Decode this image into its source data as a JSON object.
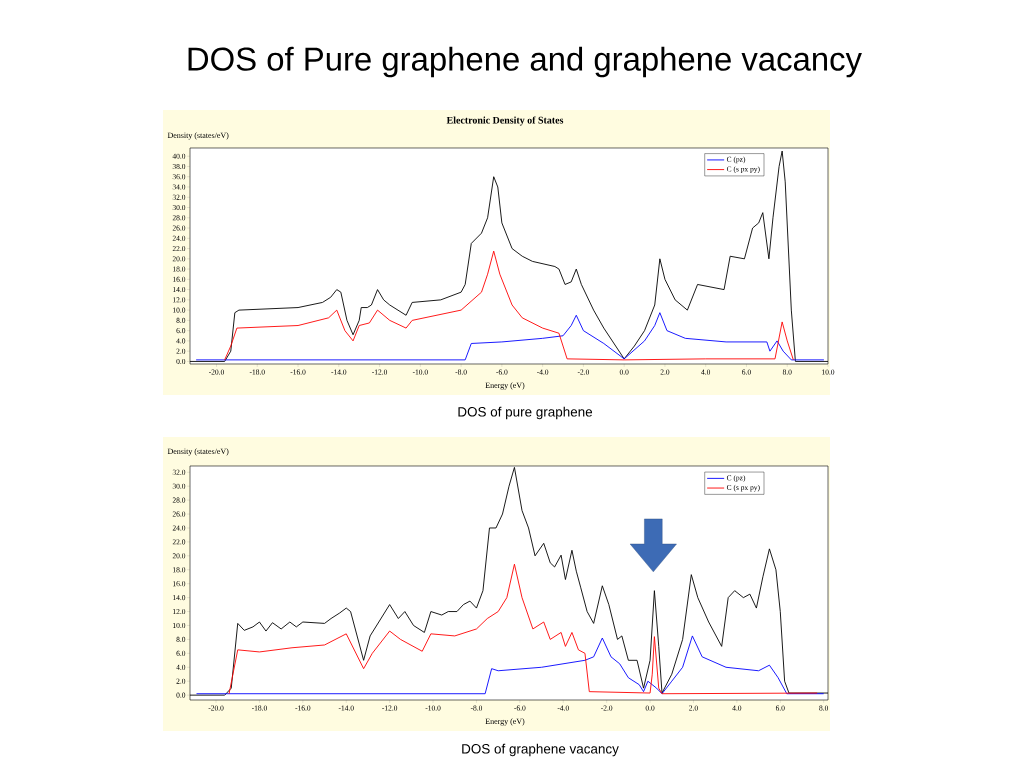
{
  "chart_data": [
    {
      "type": "line",
      "title": "DOS of Pure graphene and graphene vacancy",
      "subtitle": "Electronic Density of States",
      "xlabel": "Energy (eV)",
      "ylabel": "Density (states/eV)",
      "xlim": [
        -21.3,
        10
      ],
      "ylim": [
        -0.5,
        41.6
      ],
      "xticks": [
        {
          "value": -20,
          "label": "-20.0"
        },
        {
          "value": -18,
          "label": "-18.0"
        },
        {
          "value": -16,
          "label": "-16.0"
        },
        {
          "value": -14,
          "label": "-14.0"
        },
        {
          "value": -12,
          "label": "-12.0"
        },
        {
          "value": -10,
          "label": "-10.0"
        },
        {
          "value": -8,
          "label": "-8.0"
        },
        {
          "value": -6,
          "label": "-6.0"
        },
        {
          "value": -4,
          "label": "-4.0"
        },
        {
          "value": -2,
          "label": "-2.0"
        },
        {
          "value": 0,
          "label": "0.0"
        },
        {
          "value": 2,
          "label": "2.0"
        },
        {
          "value": 4,
          "label": "4.0"
        },
        {
          "value": 6,
          "label": "6.0"
        },
        {
          "value": 8,
          "label": "8.0"
        },
        {
          "value": 10,
          "label": "10.0"
        }
      ],
      "yticks": [
        {
          "value": 0,
          "label": "0.0"
        },
        {
          "value": 2,
          "label": "2.0"
        },
        {
          "value": 4,
          "label": "4.0"
        },
        {
          "value": 6,
          "label": "6.0"
        },
        {
          "value": 8,
          "label": "8.0"
        },
        {
          "value": 10,
          "label": "10.0"
        },
        {
          "value": 12,
          "label": "12.0"
        },
        {
          "value": 14,
          "label": "14.0"
        },
        {
          "value": 16,
          "label": "16.0"
        },
        {
          "value": 18,
          "label": "18.0"
        },
        {
          "value": 20,
          "label": "20.0"
        },
        {
          "value": 22,
          "label": "22.0"
        },
        {
          "value": 24,
          "label": "24.0"
        },
        {
          "value": 26,
          "label": "26.0"
        },
        {
          "value": 28,
          "label": "28.0"
        },
        {
          "value": 30,
          "label": "30.0"
        },
        {
          "value": 32,
          "label": "32.0"
        },
        {
          "value": 34,
          "label": "34.0"
        },
        {
          "value": 36,
          "label": "36.0"
        },
        {
          "value": 38,
          "label": "38.0"
        },
        {
          "value": 40,
          "label": "40.0"
        }
      ],
      "legend": "top right",
      "series": [
        {
          "color": "#000000",
          "x": [
            -21.3,
            -19.6,
            -19.3,
            -19.1,
            -18.9,
            -16,
            -14.8,
            -14.4,
            -14.1,
            -13.9,
            -13.6,
            -13.3,
            -13.0,
            -12.9,
            -12.6,
            -12.4,
            -12.1,
            -11.8,
            -11.5,
            -10.7,
            -10.4,
            -9,
            -8.0,
            -7.8,
            -7.5,
            -7.0,
            -6.7,
            -6.4,
            -6.2,
            -6.0,
            -5.5,
            -5,
            -4.5,
            -3.4,
            -3.2,
            -2.9,
            -2.6,
            -2.35,
            -2.1,
            -1.5,
            -1,
            -0.5,
            0,
            0.5,
            1,
            1.5,
            1.75,
            2,
            2.5,
            3.1,
            3.6,
            4.9,
            5.2,
            5.9,
            6.3,
            6.6,
            6.8,
            7.1,
            7.3,
            7.6,
            7.75,
            7.9,
            8.2,
            8.4,
            10
          ],
          "values": [
            0,
            0,
            2,
            9.5,
            10,
            10.5,
            11.5,
            12.5,
            14,
            13.5,
            8,
            5.2,
            8,
            10.5,
            10.5,
            11,
            14,
            12,
            11,
            9,
            11.5,
            12,
            13.5,
            15,
            23,
            25,
            28,
            36,
            34,
            27,
            22,
            20.5,
            19.5,
            18.5,
            18,
            15,
            15.5,
            18,
            15,
            10,
            6.5,
            3.5,
            0.5,
            3,
            6,
            11,
            20,
            16,
            12,
            10,
            15,
            14,
            20.5,
            20,
            26,
            27,
            29,
            20,
            28,
            38,
            41,
            35,
            10,
            0,
            0
          ]
        },
        {
          "name": "C (pz)",
          "color": "#0000ff",
          "x": [
            -21.0,
            -7.8,
            -7.5,
            -6,
            -4,
            -3,
            -2.6,
            -2.35,
            -2,
            -1,
            0,
            1,
            1.5,
            1.75,
            2.1,
            3,
            5,
            7,
            7.15,
            7.5,
            7.8,
            8.2,
            9.8
          ],
          "values": [
            0.3,
            0.3,
            3.5,
            3.8,
            4.5,
            5,
            7,
            9,
            6,
            3.5,
            0.5,
            4,
            7,
            9.5,
            6,
            4.5,
            3.8,
            3.8,
            2,
            4,
            2,
            0.3,
            0.3
          ]
        },
        {
          "name": "C (s px py)",
          "color": "#ff0000",
          "x": [
            -19.6,
            -19.3,
            -19,
            -16,
            -14.5,
            -14.1,
            -13.7,
            -13.3,
            -13,
            -12.5,
            -12.1,
            -11.5,
            -10.7,
            -10.4,
            -8,
            -7,
            -6.7,
            -6.4,
            -6.1,
            -5.5,
            -5,
            -4,
            -3.2,
            -3,
            -2.8,
            0,
            4,
            7.4,
            7.75,
            8,
            8.3
          ],
          "values": [
            0.3,
            3,
            6.5,
            7,
            8.5,
            10,
            6,
            4,
            7,
            7.5,
            10,
            8,
            6.5,
            8,
            10,
            13.5,
            17,
            21.5,
            17,
            11,
            8.5,
            6.5,
            5.5,
            3,
            0.5,
            0.3,
            0.5,
            0.5,
            7.7,
            4,
            0.3
          ]
        }
      ],
      "annotations": [
        "DOS of pure graphene"
      ]
    },
    {
      "type": "line",
      "xlabel": "Energy (eV)",
      "ylabel": "Density (states/eV)",
      "xlim": [
        -21.2,
        8.2
      ],
      "ylim": [
        -0.7,
        32.9
      ],
      "xticks": [
        {
          "value": -20,
          "label": "-20.0"
        },
        {
          "value": -18,
          "label": "-18.0"
        },
        {
          "value": -16,
          "label": "-16.0"
        },
        {
          "value": -14,
          "label": "-14.0"
        },
        {
          "value": -12,
          "label": "-12.0"
        },
        {
          "value": -10,
          "label": "-10.0"
        },
        {
          "value": -8,
          "label": "-8.0"
        },
        {
          "value": -6,
          "label": "-6.0"
        },
        {
          "value": -4,
          "label": "-4.0"
        },
        {
          "value": -2,
          "label": "-2.0"
        },
        {
          "value": 0,
          "label": "0.0"
        },
        {
          "value": 2,
          "label": "2.0"
        },
        {
          "value": 4,
          "label": "4.0"
        },
        {
          "value": 6,
          "label": "6.0"
        },
        {
          "value": 8,
          "label": "8.0"
        }
      ],
      "yticks": [
        {
          "value": 0,
          "label": "0.0"
        },
        {
          "value": 2,
          "label": "2.0"
        },
        {
          "value": 4,
          "label": "4.0"
        },
        {
          "value": 6,
          "label": "6.0"
        },
        {
          "value": 8,
          "label": "8.0"
        },
        {
          "value": 10,
          "label": "10.0"
        },
        {
          "value": 12,
          "label": "12.0"
        },
        {
          "value": 14,
          "label": "14.0"
        },
        {
          "value": 16,
          "label": "16.0"
        },
        {
          "value": 18,
          "label": "18.0"
        },
        {
          "value": 20,
          "label": "20.0"
        },
        {
          "value": 22,
          "label": "22.0"
        },
        {
          "value": 24,
          "label": "24.0"
        },
        {
          "value": 26,
          "label": "26.0"
        },
        {
          "value": 28,
          "label": "28.0"
        },
        {
          "value": 30,
          "label": "30.0"
        },
        {
          "value": 32,
          "label": "32.0"
        }
      ],
      "legend": "top right",
      "series": [
        {
          "color": "#000000",
          "x": [
            -21.2,
            -19.6,
            -19.3,
            -19.0,
            -18.7,
            -18.3,
            -18.0,
            -17.7,
            -17.4,
            -17.0,
            -16.6,
            -16.3,
            -16.0,
            -15.5,
            -15.0,
            -14.7,
            -14.3,
            -14.0,
            -13.8,
            -13.2,
            -12.9,
            -12.5,
            -12.0,
            -11.6,
            -11.3,
            -10.9,
            -10.4,
            -10.1,
            -9.6,
            -9.3,
            -8.9,
            -8.6,
            -8.3,
            -8.0,
            -7.7,
            -7.4,
            -7.1,
            -6.8,
            -6.5,
            -6.25,
            -5.9,
            -5.6,
            -5.3,
            -4.9,
            -4.6,
            -4.4,
            -4.1,
            -3.9,
            -3.6,
            -3.4,
            -3.2,
            -2.9,
            -2.6,
            -2.2,
            -1.9,
            -1.5,
            -1.3,
            -1.0,
            -0.6,
            -0.3,
            0.0,
            0.2,
            0.4,
            0.55,
            1,
            1.5,
            1.9,
            2.2,
            2.7,
            3.3,
            3.6,
            3.9,
            4.3,
            4.6,
            4.9,
            5.2,
            5.5,
            5.8,
            6.0,
            6.2,
            6.4,
            8.2
          ],
          "values": [
            0,
            0,
            1,
            10.3,
            9.3,
            9.8,
            10.5,
            9.2,
            10.4,
            9.5,
            10.5,
            9.8,
            10.5,
            10.4,
            10.3,
            11.0,
            11.8,
            12.5,
            12,
            5,
            8.5,
            10.5,
            13,
            11,
            12,
            10,
            9,
            12,
            11.5,
            12,
            12,
            13,
            13.5,
            12.5,
            15,
            24,
            24,
            26,
            30,
            32.7,
            26.5,
            24,
            20,
            21.8,
            19,
            18.4,
            20.1,
            16.6,
            20.8,
            17.8,
            15.5,
            12,
            10.3,
            15.7,
            13,
            8,
            8.5,
            5,
            5,
            1,
            5,
            15,
            7,
            0.3,
            3,
            8,
            17.3,
            14,
            10.5,
            7,
            14,
            15,
            14,
            14.5,
            12.5,
            17,
            21,
            18,
            12,
            2,
            0.3,
            0.3
          ]
        },
        {
          "name": "C (pz)",
          "color": "#0000ff",
          "x": [
            -20.9,
            -7.6,
            -7.3,
            -7,
            -5,
            -3,
            -2.6,
            -2.2,
            -1.8,
            -1.4,
            -1,
            -0.5,
            -0.3,
            -0.1,
            0.3,
            0.55,
            1,
            1.5,
            1.95,
            2.4,
            3.5,
            5,
            5.5,
            5.9,
            6.3,
            8.0
          ],
          "values": [
            0.2,
            0.2,
            3.8,
            3.5,
            4,
            5,
            5.5,
            8.2,
            5.5,
            4.5,
            2.5,
            1.5,
            0.5,
            2,
            1,
            0.2,
            2,
            4,
            8.5,
            5.5,
            4,
            3.5,
            4.3,
            2.5,
            0.2,
            0.2
          ]
        },
        {
          "name": "C (s px py)",
          "color": "#ff0000",
          "x": [
            -19.4,
            -19,
            -18,
            -16.5,
            -15,
            -14,
            -13.2,
            -12.8,
            -12,
            -11.5,
            -10.5,
            -10.1,
            -9,
            -8,
            -7.5,
            -7,
            -6.6,
            -6.25,
            -5.9,
            -5.4,
            -4.9,
            -4.6,
            -4.1,
            -3.9,
            -3.6,
            -3.3,
            -3.0,
            -2.8,
            0,
            0.1,
            0.2,
            0.4,
            0.55,
            7.7
          ],
          "values": [
            0.2,
            6.5,
            6.2,
            6.8,
            7.2,
            8.8,
            3.8,
            6,
            9.2,
            8,
            6.3,
            8.8,
            8.5,
            9.5,
            11,
            12,
            14,
            18.8,
            14,
            9.5,
            10.5,
            8,
            9,
            7,
            9,
            6.5,
            6,
            0.5,
            0.3,
            3,
            8.4,
            1,
            0.2,
            0.3
          ]
        }
      ],
      "annotations": [
        "DOS of graphene vacancy"
      ]
    }
  ]
}
